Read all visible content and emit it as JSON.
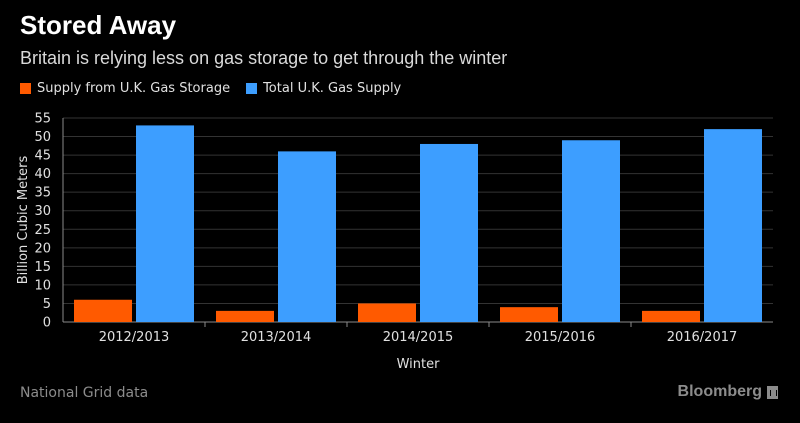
{
  "header": {
    "title": "Stored Away",
    "subtitle": "Britain is relying less on gas storage to get through the winter"
  },
  "footer": {
    "source": "National Grid data",
    "brand": "Bloomberg"
  },
  "chart_data": {
    "type": "bar",
    "categories": [
      "2012/2013",
      "2013/2014",
      "2014/2015",
      "2015/2016",
      "2016/2017"
    ],
    "series": [
      {
        "name": "Supply from U.K. Gas Storage",
        "color": "#ff5a00",
        "values": [
          6,
          3,
          5,
          4,
          3
        ]
      },
      {
        "name": "Total U.K. Gas Supply",
        "color": "#3d9eff",
        "values": [
          53,
          46,
          48,
          49,
          52
        ]
      }
    ],
    "xlabel": "Winter",
    "ylabel": "Billion Cubic Meters",
    "ylim": [
      0,
      55
    ],
    "yticks": [
      0,
      5,
      10,
      15,
      20,
      25,
      30,
      35,
      40,
      45,
      50,
      55
    ],
    "grid": true,
    "legend": "top-left"
  }
}
